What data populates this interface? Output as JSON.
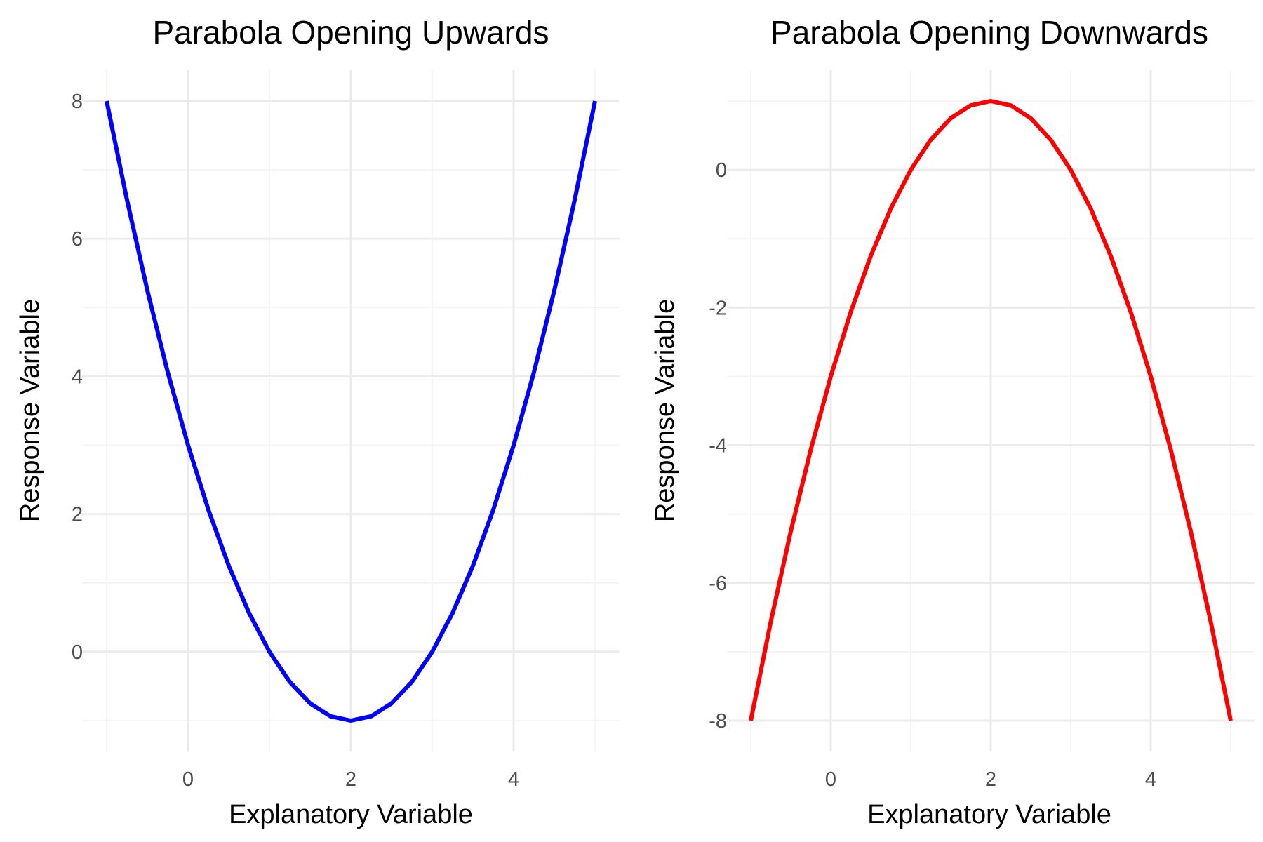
{
  "chart_data": [
    {
      "type": "line",
      "title": "Parabola Opening Upwards",
      "xlabel": "Explanatory Variable",
      "ylabel": "Response Variable",
      "xlim": [
        -1,
        5
      ],
      "ylim": [
        -1,
        8
      ],
      "x_ticks": [
        0,
        2,
        4
      ],
      "y_ticks": [
        0,
        2,
        4,
        6,
        8
      ],
      "x_tick_labels": [
        "0",
        "2",
        "4"
      ],
      "y_tick_labels": [
        "0",
        "2",
        "4",
        "6",
        "8"
      ],
      "grid": true,
      "series": [
        {
          "color": "#0000ff",
          "x": [
            -1,
            -0.75,
            -0.5,
            -0.25,
            0,
            0.25,
            0.5,
            0.75,
            1,
            1.25,
            1.5,
            1.75,
            2,
            2.25,
            2.5,
            2.75,
            3,
            3.25,
            3.5,
            3.75,
            4,
            4.25,
            4.5,
            4.75,
            5
          ],
          "y": [
            8,
            6.5625,
            5.25,
            4.0625,
            3,
            2.0625,
            1.25,
            0.5625,
            0,
            -0.4375,
            -0.75,
            -0.9375,
            -1,
            -0.9375,
            -0.75,
            -0.4375,
            0,
            0.5625,
            1.25,
            2.0625,
            3,
            4.0625,
            5.25,
            6.5625,
            8
          ]
        }
      ]
    },
    {
      "type": "line",
      "title": "Parabola Opening Downwards",
      "xlabel": "Explanatory Variable",
      "ylabel": "Response Variable",
      "xlim": [
        -1,
        5
      ],
      "ylim": [
        -8,
        1
      ],
      "x_ticks": [
        0,
        2,
        4
      ],
      "y_ticks": [
        -8,
        -6,
        -4,
        -2,
        0
      ],
      "x_tick_labels": [
        "0",
        "2",
        "4"
      ],
      "y_tick_labels": [
        "-8",
        "-6",
        "-4",
        "-2",
        "0"
      ],
      "grid": true,
      "series": [
        {
          "color": "#ff0000",
          "x": [
            -1,
            -0.75,
            -0.5,
            -0.25,
            0,
            0.25,
            0.5,
            0.75,
            1,
            1.25,
            1.5,
            1.75,
            2,
            2.25,
            2.5,
            2.75,
            3,
            3.25,
            3.5,
            3.75,
            4,
            4.25,
            4.5,
            4.75,
            5
          ],
          "y": [
            -8,
            -6.5625,
            -5.25,
            -4.0625,
            -3,
            -2.0625,
            -1.25,
            -0.5625,
            0,
            0.4375,
            0.75,
            0.9375,
            1,
            0.9375,
            0.75,
            0.4375,
            0,
            -0.5625,
            -1.25,
            -2.0625,
            -3,
            -4.0625,
            -5.25,
            -6.5625,
            -8
          ]
        }
      ]
    }
  ]
}
